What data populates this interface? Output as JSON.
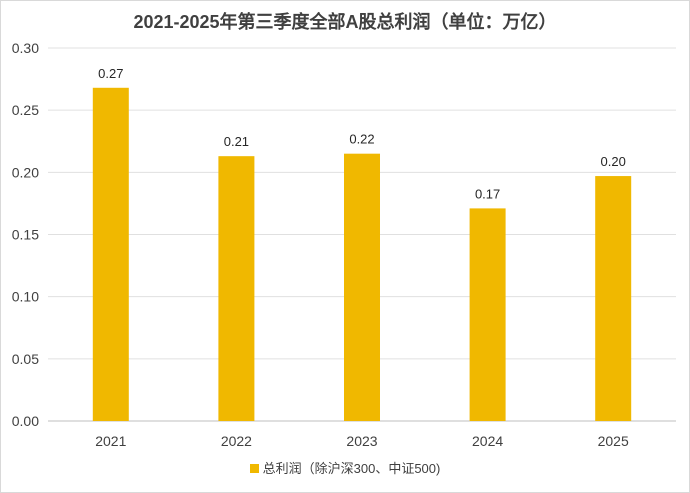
{
  "chart_data": {
    "type": "bar",
    "title": "2021-2025年第三季度全部A股总利润（单位：万亿）",
    "categories": [
      "2021",
      "2022",
      "2023",
      "2024",
      "2025"
    ],
    "series": [
      {
        "name": "总利润（除沪深300、中证500)",
        "values": [
          0.268,
          0.213,
          0.215,
          0.171,
          0.197
        ],
        "data_labels": [
          "0.27",
          "0.21",
          "0.22",
          "0.17",
          "0.20"
        ],
        "color": "#F0B800"
      }
    ],
    "ylim": [
      0,
      0.3
    ],
    "yticks": [
      "0.00",
      "0.05",
      "0.10",
      "0.15",
      "0.20",
      "0.25",
      "0.30"
    ],
    "grid": true,
    "legend_position": "bottom"
  }
}
